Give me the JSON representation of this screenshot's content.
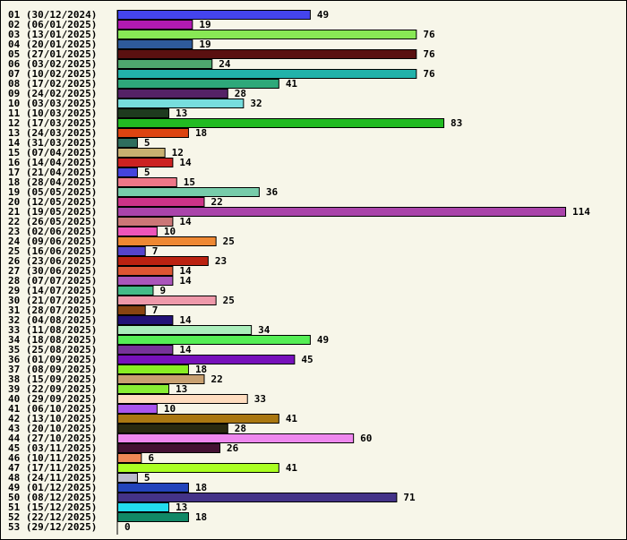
{
  "chart_data": {
    "type": "bar",
    "orientation": "horizontal",
    "categories": [
      "01 (30/12/2024)",
      "02 (06/01/2025)",
      "03 (13/01/2025)",
      "04 (20/01/2025)",
      "05 (27/01/2025)",
      "06 (03/02/2025)",
      "07 (10/02/2025)",
      "08 (17/02/2025)",
      "09 (24/02/2025)",
      "10 (03/03/2025)",
      "11 (10/03/2025)",
      "12 (17/03/2025)",
      "13 (24/03/2025)",
      "14 (31/03/2025)",
      "15 (07/04/2025)",
      "16 (14/04/2025)",
      "17 (21/04/2025)",
      "18 (28/04/2025)",
      "19 (05/05/2025)",
      "20 (12/05/2025)",
      "21 (19/05/2025)",
      "22 (26/05/2025)",
      "23 (02/06/2025)",
      "24 (09/06/2025)",
      "25 (16/06/2025)",
      "26 (23/06/2025)",
      "27 (30/06/2025)",
      "28 (07/07/2025)",
      "29 (14/07/2025)",
      "30 (21/07/2025)",
      "31 (28/07/2025)",
      "32 (04/08/2025)",
      "33 (11/08/2025)",
      "34 (18/08/2025)",
      "35 (25/08/2025)",
      "36 (01/09/2025)",
      "37 (08/09/2025)",
      "38 (15/09/2025)",
      "39 (22/09/2025)",
      "40 (29/09/2025)",
      "41 (06/10/2025)",
      "42 (13/10/2025)",
      "43 (20/10/2025)",
      "44 (27/10/2025)",
      "45 (03/11/2025)",
      "46 (10/11/2025)",
      "47 (17/11/2025)",
      "48 (24/11/2025)",
      "49 (01/12/2025)",
      "50 (08/12/2025)",
      "51 (15/12/2025)",
      "52 (22/12/2025)",
      "53 (29/12/2025)"
    ],
    "values": [
      49,
      19,
      76,
      19,
      76,
      24,
      76,
      41,
      28,
      32,
      13,
      83,
      18,
      5,
      12,
      14,
      5,
      15,
      36,
      22,
      114,
      14,
      10,
      25,
      7,
      23,
      14,
      14,
      9,
      25,
      7,
      14,
      34,
      49,
      14,
      45,
      18,
      22,
      13,
      33,
      10,
      41,
      28,
      60,
      26,
      6,
      41,
      5,
      18,
      71,
      13,
      18,
      0
    ],
    "colors": [
      "#4444ee",
      "#b21ab2",
      "#88e855",
      "#2e5a9a",
      "#5a1010",
      "#4ea86e",
      "#22b2aa",
      "#2ea87a",
      "#552266",
      "#77dddd",
      "#1e3a1e",
      "#22bb22",
      "#dd4411",
      "#2e6e5e",
      "#c8b070",
      "#cc2222",
      "#4444dd",
      "#ee7788",
      "#77ccaa",
      "#cc3388",
      "#aa44aa",
      "#cc7777",
      "#ee55bb",
      "#ee8833",
      "#5544cc",
      "#bb2211",
      "#dd5533",
      "#aa55bb",
      "#44bb88",
      "#ee99aa",
      "#884411",
      "#221177",
      "#aaeebb",
      "#55ee55",
      "#773399",
      "#7711bb",
      "#88ee22",
      "#c8a070",
      "#88ee33",
      "#ffddc0",
      "#aa55ee",
      "#aa7711",
      "#2a2a10",
      "#ee88ee",
      "#441133",
      "#ee8855",
      "#aaff22",
      "#bbbbcc",
      "#2244bb",
      "#443388",
      "#22ddee",
      "#118866",
      "#cccccc"
    ],
    "xlim": [
      0,
      114
    ]
  }
}
